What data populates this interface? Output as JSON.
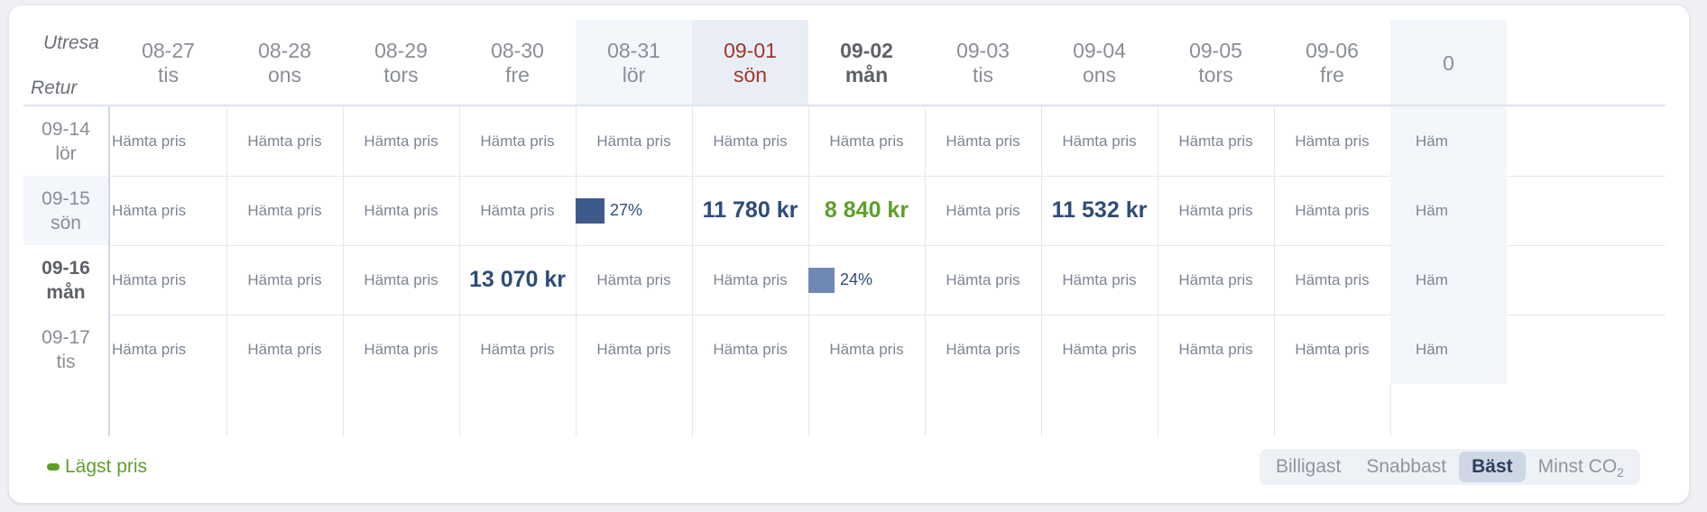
{
  "corner": {
    "outbound_label": "Utresa",
    "return_label": "Retur"
  },
  "columns": [
    {
      "date": "08-27",
      "day": "tis",
      "style": ""
    },
    {
      "date": "08-28",
      "day": "ons",
      "style": ""
    },
    {
      "date": "08-29",
      "day": "tors",
      "style": ""
    },
    {
      "date": "08-30",
      "day": "fre",
      "style": ""
    },
    {
      "date": "08-31",
      "day": "lör",
      "style": "weekend"
    },
    {
      "date": "09-01",
      "day": "sön",
      "style": "red"
    },
    {
      "date": "09-02",
      "day": "mån",
      "style": "bold"
    },
    {
      "date": "09-03",
      "day": "tis",
      "style": ""
    },
    {
      "date": "09-04",
      "day": "ons",
      "style": ""
    },
    {
      "date": "09-05",
      "day": "tors",
      "style": ""
    },
    {
      "date": "09-06",
      "day": "fre",
      "style": ""
    },
    {
      "date": "0",
      "day": "",
      "style": "weekend"
    }
  ],
  "rows": [
    {
      "date": "09-14",
      "day": "lör",
      "style": "",
      "cells": [
        {
          "kind": "fetch",
          "text": "Hämta pris"
        },
        {
          "kind": "fetch",
          "text": "Hämta pris"
        },
        {
          "kind": "fetch",
          "text": "Hämta pris"
        },
        {
          "kind": "fetch",
          "text": "Hämta pris"
        },
        {
          "kind": "fetch",
          "text": "Hämta pris"
        },
        {
          "kind": "fetch",
          "text": "Hämta pris"
        },
        {
          "kind": "fetch",
          "text": "Hämta pris"
        },
        {
          "kind": "fetch",
          "text": "Hämta pris"
        },
        {
          "kind": "fetch",
          "text": "Hämta pris"
        },
        {
          "kind": "fetch",
          "text": "Hämta pris"
        },
        {
          "kind": "fetch",
          "text": "Hämta pris"
        },
        {
          "kind": "fetch",
          "text": "Häm"
        }
      ]
    },
    {
      "date": "09-15",
      "day": "sön",
      "style": "weekend",
      "cells": [
        {
          "kind": "fetch",
          "text": "Hämta pris"
        },
        {
          "kind": "fetch",
          "text": "Hämta pris"
        },
        {
          "kind": "fetch",
          "text": "Hämta pris"
        },
        {
          "kind": "fetch",
          "text": "Hämta pris"
        },
        {
          "kind": "bar",
          "text": "27%",
          "fraction": 0.27,
          "color": "#3e5a8a"
        },
        {
          "kind": "price",
          "text": "11 780 kr"
        },
        {
          "kind": "price-best",
          "text": "8 840 kr"
        },
        {
          "kind": "fetch",
          "text": "Hämta pris"
        },
        {
          "kind": "price",
          "text": "11 532 kr"
        },
        {
          "kind": "fetch",
          "text": "Hämta pris"
        },
        {
          "kind": "fetch",
          "text": "Hämta pris"
        },
        {
          "kind": "fetch",
          "text": "Häm"
        }
      ]
    },
    {
      "date": "09-16",
      "day": "mån",
      "style": "bold",
      "cells": [
        {
          "kind": "fetch",
          "text": "Hämta pris"
        },
        {
          "kind": "fetch",
          "text": "Hämta pris"
        },
        {
          "kind": "fetch",
          "text": "Hämta pris"
        },
        {
          "kind": "price",
          "text": "13 070 kr"
        },
        {
          "kind": "fetch",
          "text": "Hämta pris"
        },
        {
          "kind": "fetch",
          "text": "Hämta pris"
        },
        {
          "kind": "bar",
          "text": "24%",
          "fraction": 0.24,
          "color": "#6f89b4"
        },
        {
          "kind": "fetch",
          "text": "Hämta pris"
        },
        {
          "kind": "fetch",
          "text": "Hämta pris"
        },
        {
          "kind": "fetch",
          "text": "Hämta pris"
        },
        {
          "kind": "fetch",
          "text": "Hämta pris"
        },
        {
          "kind": "fetch",
          "text": "Häm"
        }
      ]
    },
    {
      "date": "09-17",
      "day": "tis",
      "style": "",
      "cells": [
        {
          "kind": "fetch",
          "text": "Hämta pris"
        },
        {
          "kind": "fetch",
          "text": "Hämta pris"
        },
        {
          "kind": "fetch",
          "text": "Hämta pris"
        },
        {
          "kind": "fetch",
          "text": "Hämta pris"
        },
        {
          "kind": "fetch",
          "text": "Hämta pris"
        },
        {
          "kind": "fetch",
          "text": "Hämta pris"
        },
        {
          "kind": "fetch",
          "text": "Hämta pris"
        },
        {
          "kind": "fetch",
          "text": "Hämta pris"
        },
        {
          "kind": "fetch",
          "text": "Hämta pris"
        },
        {
          "kind": "fetch",
          "text": "Hämta pris"
        },
        {
          "kind": "fetch",
          "text": "Hämta pris"
        },
        {
          "kind": "fetch",
          "text": "Häm"
        }
      ]
    }
  ],
  "legend": {
    "label": "Lägst pris",
    "color": "#5da02a"
  },
  "sort": {
    "options": [
      "Billigast",
      "Snabbast",
      "Bäst",
      "Minst CO"
    ],
    "co2_subscript": "2",
    "active": "Bäst"
  },
  "colors": {
    "price_text": "#2d4c78",
    "best_price": "#5da02a",
    "weekend_bg": "#f3f6fb",
    "holiday_red": "#a0352a"
  }
}
